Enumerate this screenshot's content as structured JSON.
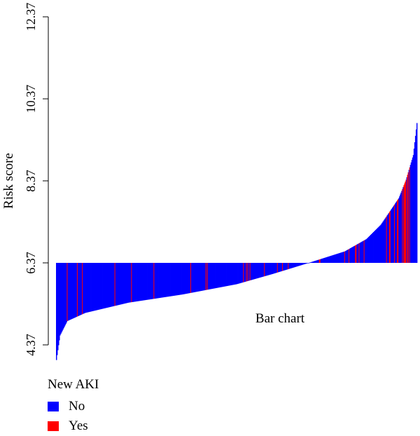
{
  "chart_data": {
    "type": "bar",
    "title": "",
    "annotation": "Bar chart",
    "xlabel": "",
    "ylabel": "Risk score",
    "ylim": [
      4.37,
      12.37
    ],
    "baseline": 6.37,
    "yticks": [
      "4.37",
      "6.37",
      "8.37",
      "10.37",
      "12.37"
    ],
    "n_bars": 500,
    "sorted_risk_profile": {
      "quantiles": [
        0,
        0.01,
        0.03,
        0.08,
        0.2,
        0.35,
        0.5,
        0.6,
        0.7,
        0.8,
        0.86,
        0.9,
        0.95,
        0.97,
        0.99,
        1
      ],
      "values": [
        4.0,
        4.6,
        4.95,
        5.15,
        5.4,
        5.6,
        5.85,
        6.1,
        6.37,
        6.65,
        6.95,
        7.3,
        7.95,
        8.4,
        9.0,
        9.78
      ]
    },
    "yes_fraction_by_segment": [
      {
        "range": [
          0,
          0.7
        ],
        "fraction": 0.05
      },
      {
        "range": [
          0.7,
          0.9
        ],
        "fraction": 0.07
      },
      {
        "range": [
          0.9,
          1.0
        ],
        "fraction": 0.3
      }
    ],
    "legend": {
      "title": "New AKI",
      "placement": "bottom-left",
      "items": [
        {
          "label": "No",
          "color": "#0000ff"
        },
        {
          "label": "Yes",
          "color": "#ff0000"
        }
      ]
    }
  }
}
